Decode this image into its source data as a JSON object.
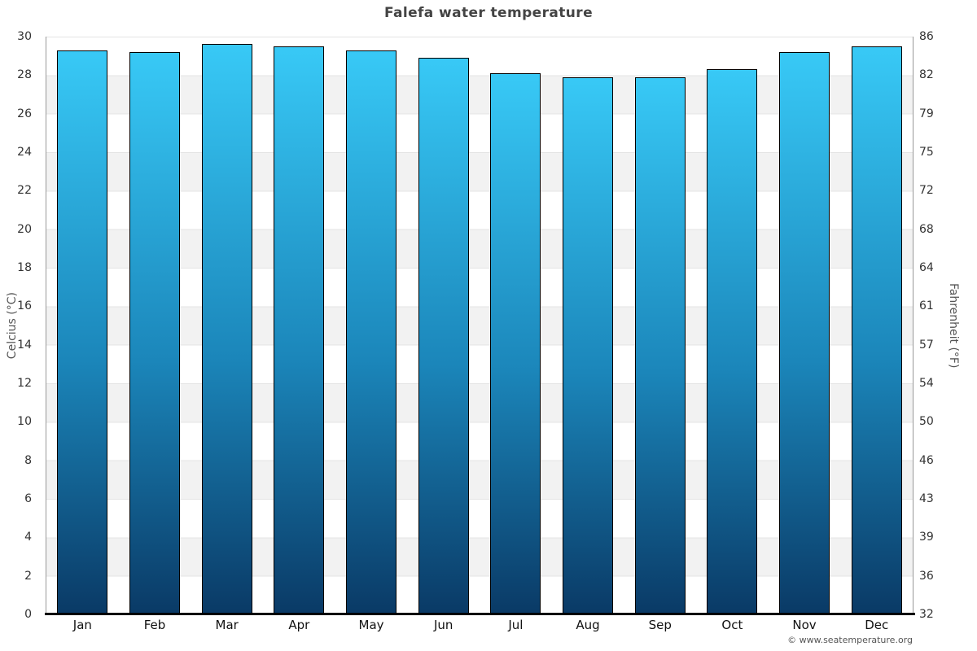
{
  "title": "Falefa water temperature",
  "footer": "© www.seatemperature.org",
  "axes": {
    "left_label": "Celcius (°C)",
    "right_label": "Fahrenheit (°F)",
    "celsius_ticks": [
      0,
      2,
      4,
      6,
      8,
      10,
      12,
      14,
      16,
      18,
      20,
      22,
      24,
      26,
      28,
      30
    ],
    "fahrenheit_ticks": [
      32,
      36,
      39,
      43,
      46,
      50,
      54,
      57,
      61,
      64,
      68,
      72,
      75,
      79,
      82,
      86
    ]
  },
  "chart_data": {
    "type": "bar",
    "title": "Falefa water temperature",
    "categories": [
      "Jan",
      "Feb",
      "Mar",
      "Apr",
      "May",
      "Jun",
      "Jul",
      "Aug",
      "Sep",
      "Oct",
      "Nov",
      "Dec"
    ],
    "values": [
      29.3,
      29.2,
      29.6,
      29.5,
      29.3,
      28.9,
      28.1,
      27.9,
      27.9,
      28.3,
      29.2,
      29.5
    ],
    "xlabel": "",
    "ylabel_left": "Celcius (°C)",
    "ylabel_right": "Fahrenheit (°F)",
    "ylim": [
      0,
      30
    ],
    "grid": "horizontal-stripes-every-2C",
    "legend": "none"
  },
  "colors": {
    "bar_top": "#38c9f6",
    "bar_mid": "#1b86ba",
    "bar_bottom": "#0a3a66",
    "bar_border": "#000000",
    "stripe": "#f2f2f2",
    "grid_line": "#e4e4e4",
    "axis_line": "#999999",
    "x_axis_line": "#000000",
    "title_text": "#444444",
    "tick_text": "#333333",
    "axis_title_text": "#555555",
    "month_text": "#111111",
    "footer_text": "#555555",
    "background": "#ffffff"
  }
}
